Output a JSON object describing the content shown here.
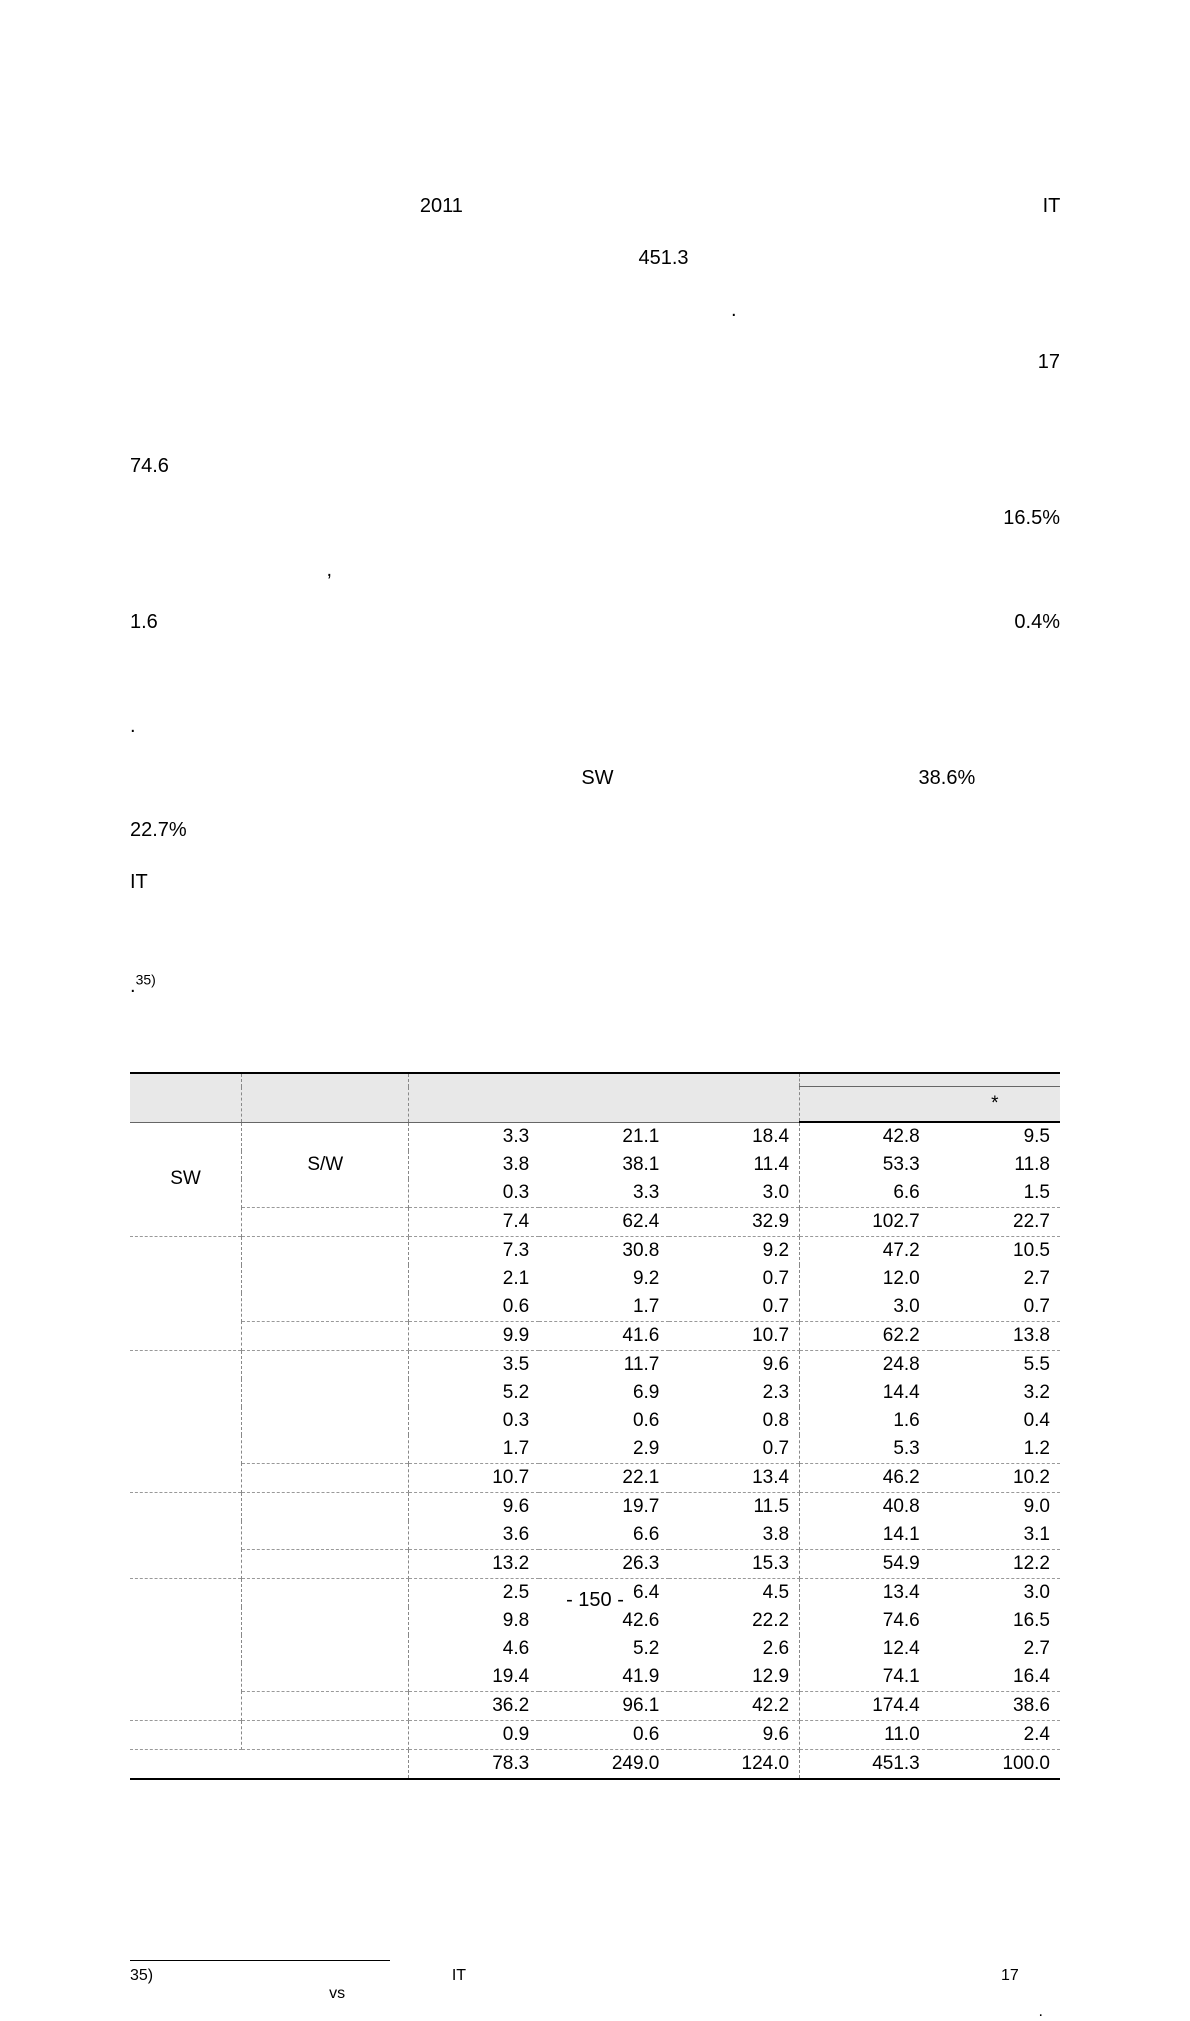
{
  "paragraph": {
    "line1_a": "2011",
    "line1_b": "IT",
    "line1_c": "451.3",
    "line2_a": ".",
    "line3_a": "17",
    "line3_b": "74.6",
    "line4_a": "16.5%",
    "line4_b": ",",
    "line5_a": "1.6",
    "line5_b": "0.4%",
    "line5_c": ".",
    "line6_a": "SW",
    "line6_b": "38.6%",
    "line6_c": "22.7%",
    "line7_a": "IT",
    "line7_b": ".",
    "line7_sup": "35)"
  },
  "table": {
    "header_star": "*",
    "labels": {
      "sw_cat": "SW",
      "sw_sub": "S/W"
    },
    "rows": [
      [
        "3.3",
        "21.1",
        "18.4",
        "42.8",
        "9.5"
      ],
      [
        "3.8",
        "38.1",
        "11.4",
        "53.3",
        "11.8"
      ],
      [
        "0.3",
        "3.3",
        "3.0",
        "6.6",
        "1.5"
      ],
      [
        "7.4",
        "62.4",
        "32.9",
        "102.7",
        "22.7"
      ],
      [
        "7.3",
        "30.8",
        "9.2",
        "47.2",
        "10.5"
      ],
      [
        "2.1",
        "9.2",
        "0.7",
        "12.0",
        "2.7"
      ],
      [
        "0.6",
        "1.7",
        "0.7",
        "3.0",
        "0.7"
      ],
      [
        "9.9",
        "41.6",
        "10.7",
        "62.2",
        "13.8"
      ],
      [
        "3.5",
        "11.7",
        "9.6",
        "24.8",
        "5.5"
      ],
      [
        "5.2",
        "6.9",
        "2.3",
        "14.4",
        "3.2"
      ],
      [
        "0.3",
        "0.6",
        "0.8",
        "1.6",
        "0.4"
      ],
      [
        "1.7",
        "2.9",
        "0.7",
        "5.3",
        "1.2"
      ],
      [
        "10.7",
        "22.1",
        "13.4",
        "46.2",
        "10.2"
      ],
      [
        "9.6",
        "19.7",
        "11.5",
        "40.8",
        "9.0"
      ],
      [
        "3.6",
        "6.6",
        "3.8",
        "14.1",
        "3.1"
      ],
      [
        "13.2",
        "26.3",
        "15.3",
        "54.9",
        "12.2"
      ],
      [
        "2.5",
        "6.4",
        "4.5",
        "13.4",
        "3.0"
      ],
      [
        "9.8",
        "42.6",
        "22.2",
        "74.6",
        "16.5"
      ],
      [
        "4.6",
        "5.2",
        "2.6",
        "12.4",
        "2.7"
      ],
      [
        "19.4",
        "41.9",
        "12.9",
        "74.1",
        "16.4"
      ],
      [
        "36.2",
        "96.1",
        "42.2",
        "174.4",
        "38.6"
      ],
      [
        "0.9",
        "0.6",
        "9.6",
        "11.0",
        "2.4"
      ],
      [
        "78.3",
        "249.0",
        "124.0",
        "451.3",
        "100.0"
      ]
    ]
  },
  "footnote": {
    "num": "35)",
    "a": "IT",
    "b": "17",
    "c": "vs",
    "d": "."
  },
  "page_number": "- 150 -"
}
